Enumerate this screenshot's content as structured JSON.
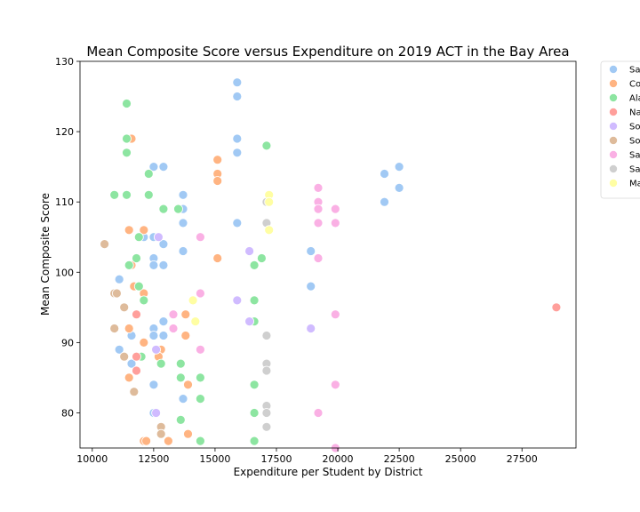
{
  "chart_data": {
    "type": "scatter",
    "title": "Mean Composite Score versus Expenditure on 2019 ACT in the Bay Area",
    "xlabel": "Expenditure per Student by District",
    "ylabel": "Mean Composite Score",
    "xlim": [
      9500,
      29700
    ],
    "ylim": [
      75,
      130
    ],
    "xticks": [
      10000,
      12500,
      15000,
      17500,
      20000,
      22500,
      25000,
      27500
    ],
    "yticks": [
      80,
      90,
      100,
      110,
      120,
      130
    ],
    "grid": false,
    "legend": {
      "placement": "outside-top-right"
    },
    "series": [
      {
        "name": "Sa",
        "color": "#a1c9f4",
        "points": [
          [
            15900,
            127
          ],
          [
            15900,
            125
          ],
          [
            15900,
            119
          ],
          [
            15900,
            117
          ],
          [
            12500,
            115
          ],
          [
            12900,
            115
          ],
          [
            21900,
            114
          ],
          [
            22500,
            115
          ],
          [
            22500,
            112
          ],
          [
            21900,
            110
          ],
          [
            13700,
            111
          ],
          [
            13700,
            109
          ],
          [
            13700,
            107
          ],
          [
            15900,
            107
          ],
          [
            12100,
            105
          ],
          [
            12500,
            105
          ],
          [
            12900,
            104
          ],
          [
            13700,
            103
          ],
          [
            18900,
            103
          ],
          [
            12500,
            102
          ],
          [
            12500,
            101
          ],
          [
            12900,
            101
          ],
          [
            11100,
            99
          ],
          [
            18900,
            98
          ],
          [
            12900,
            93
          ],
          [
            12500,
            92
          ],
          [
            11600,
            91
          ],
          [
            12500,
            91
          ],
          [
            12900,
            91
          ],
          [
            11100,
            89
          ],
          [
            11600,
            87
          ],
          [
            12500,
            84
          ],
          [
            13700,
            82
          ],
          [
            12500,
            80
          ]
        ]
      },
      {
        "name": "Co",
        "color": "#ffb482",
        "points": [
          [
            11600,
            119
          ],
          [
            15100,
            116
          ],
          [
            15100,
            114
          ],
          [
            15100,
            113
          ],
          [
            11500,
            106
          ],
          [
            12100,
            106
          ],
          [
            15100,
            102
          ],
          [
            11600,
            101
          ],
          [
            11700,
            98
          ],
          [
            12100,
            97
          ],
          [
            13800,
            94
          ],
          [
            11500,
            92
          ],
          [
            13800,
            91
          ],
          [
            12100,
            90
          ],
          [
            12800,
            89
          ],
          [
            12700,
            88
          ],
          [
            11500,
            85
          ],
          [
            13900,
            84
          ],
          [
            12800,
            77
          ],
          [
            13900,
            77
          ],
          [
            12100,
            76
          ],
          [
            12200,
            76
          ],
          [
            13100,
            76
          ]
        ]
      },
      {
        "name": "Ala",
        "color": "#8de5a1",
        "points": [
          [
            11400,
            124
          ],
          [
            11400,
            119
          ],
          [
            17100,
            118
          ],
          [
            11400,
            117
          ],
          [
            12300,
            114
          ],
          [
            10900,
            111
          ],
          [
            11400,
            111
          ],
          [
            12300,
            111
          ],
          [
            12900,
            109
          ],
          [
            13500,
            109
          ],
          [
            11900,
            105
          ],
          [
            12700,
            105
          ],
          [
            11800,
            102
          ],
          [
            16900,
            102
          ],
          [
            11500,
            101
          ],
          [
            16600,
            101
          ],
          [
            11900,
            98
          ],
          [
            12100,
            96
          ],
          [
            16600,
            96
          ],
          [
            16600,
            93
          ],
          [
            12000,
            88
          ],
          [
            12800,
            87
          ],
          [
            13600,
            87
          ],
          [
            13600,
            85
          ],
          [
            14400,
            85
          ],
          [
            16600,
            84
          ],
          [
            14400,
            82
          ],
          [
            16600,
            80
          ],
          [
            13600,
            79
          ],
          [
            14400,
            76
          ],
          [
            16600,
            76
          ]
        ]
      },
      {
        "name": "Na",
        "color": "#ff9f9b",
        "points": [
          [
            28900,
            95
          ],
          [
            11800,
            94
          ],
          [
            11800,
            88
          ],
          [
            11800,
            86
          ]
        ]
      },
      {
        "name": "So",
        "color": "#d0bbff",
        "points": [
          [
            12700,
            105
          ],
          [
            16400,
            103
          ],
          [
            15900,
            96
          ],
          [
            16400,
            93
          ],
          [
            18900,
            92
          ],
          [
            12600,
            89
          ],
          [
            12600,
            80
          ]
        ]
      },
      {
        "name": "So",
        "color": "#debb9b",
        "points": [
          [
            10500,
            104
          ],
          [
            10900,
            97
          ],
          [
            11000,
            97
          ],
          [
            11300,
            95
          ],
          [
            10900,
            92
          ],
          [
            11300,
            88
          ],
          [
            11700,
            83
          ],
          [
            12800,
            78
          ],
          [
            12800,
            77
          ]
        ]
      },
      {
        "name": "Sa",
        "color": "#fab0e4",
        "points": [
          [
            19200,
            112
          ],
          [
            19200,
            110
          ],
          [
            19200,
            109
          ],
          [
            19900,
            109
          ],
          [
            19200,
            107
          ],
          [
            19900,
            107
          ],
          [
            14400,
            105
          ],
          [
            19200,
            102
          ],
          [
            14400,
            97
          ],
          [
            19900,
            94
          ],
          [
            13300,
            94
          ],
          [
            13300,
            92
          ],
          [
            14400,
            89
          ],
          [
            19900,
            84
          ],
          [
            19200,
            80
          ],
          [
            19900,
            75
          ]
        ]
      },
      {
        "name": "Sa",
        "color": "#cfcfcf",
        "points": [
          [
            17100,
            110
          ],
          [
            17100,
            107
          ],
          [
            17100,
            91
          ],
          [
            17100,
            87
          ],
          [
            17100,
            86
          ],
          [
            17100,
            81
          ],
          [
            17100,
            80
          ],
          [
            17100,
            78
          ]
        ]
      },
      {
        "name": "Ma",
        "color": "#fffea3",
        "points": [
          [
            17200,
            111
          ],
          [
            17200,
            110
          ],
          [
            17200,
            106
          ],
          [
            14100,
            96
          ],
          [
            14200,
            93
          ]
        ]
      }
    ]
  }
}
